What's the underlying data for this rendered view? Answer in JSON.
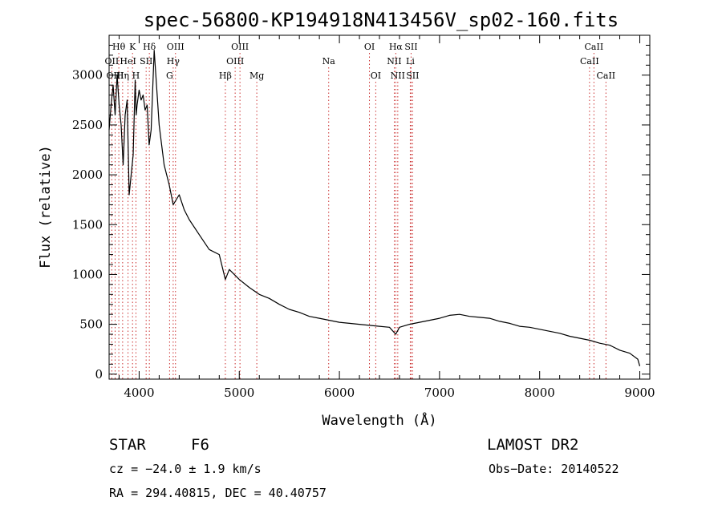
{
  "chart_data": {
    "type": "line",
    "title": "spec-56800-KP194918N413456V_sp02-160.fits",
    "xlabel": "Wavelength (Å)",
    "ylabel": "Flux (relative)",
    "xlim": [
      3700,
      9100
    ],
    "ylim": [
      -50,
      3400
    ],
    "xticks": [
      4000,
      5000,
      6000,
      7000,
      8000,
      9000
    ],
    "yticks": [
      0,
      500,
      1000,
      1500,
      2000,
      2500,
      3000
    ],
    "grid": false,
    "series": [
      {
        "x": [
          3700,
          3720,
          3740,
          3760,
          3780,
          3800,
          3820,
          3840,
          3860,
          3880,
          3900,
          3920,
          3940,
          3960,
          3970,
          3980,
          4000,
          4020,
          4040,
          4060,
          4080,
          4100,
          4120,
          4150,
          4200,
          4250,
          4300,
          4340,
          4400,
          4450,
          4500,
          4600,
          4700,
          4800,
          4861,
          4900,
          5000,
          5100,
          5200,
          5300,
          5400,
          5500,
          5600,
          5700,
          5800,
          5900,
          6000,
          6100,
          6200,
          6300,
          6400,
          6500,
          6563,
          6600,
          6700,
          6800,
          6900,
          7000,
          7100,
          7200,
          7300,
          7400,
          7500,
          7600,
          7700,
          7800,
          7900,
          8000,
          8100,
          8200,
          8300,
          8400,
          8500,
          8600,
          8700,
          8800,
          8900,
          8980,
          9000
        ],
        "y": [
          2450,
          2700,
          2900,
          2600,
          3000,
          2700,
          2500,
          2100,
          2600,
          2750,
          1800,
          2000,
          2200,
          2950,
          2600,
          2700,
          2850,
          2750,
          2800,
          2650,
          2700,
          2300,
          2450,
          3250,
          2500,
          2100,
          1900,
          1700,
          1800,
          1650,
          1550,
          1400,
          1250,
          1200,
          950,
          1050,
          950,
          870,
          800,
          760,
          700,
          650,
          620,
          580,
          560,
          540,
          520,
          510,
          500,
          490,
          480,
          470,
          400,
          470,
          500,
          520,
          540,
          560,
          590,
          600,
          580,
          570,
          560,
          530,
          510,
          480,
          470,
          450,
          430,
          410,
          380,
          360,
          340,
          310,
          290,
          240,
          210,
          150,
          80
        ]
      }
    ],
    "line_markers": [
      {
        "label": "Hθ",
        "x": 3797,
        "row": 0
      },
      {
        "label": "OII",
        "x": 3727,
        "row": 1
      },
      {
        "label": "OIII",
        "x": 3760,
        "row": 2
      },
      {
        "label": "K",
        "x": 3934,
        "row": 0
      },
      {
        "label": "HeI",
        "x": 3889,
        "row": 1
      },
      {
        "label": "Hη",
        "x": 3835,
        "row": 2
      },
      {
        "label": "Hδ",
        "x": 4102,
        "row": 0
      },
      {
        "label": "SII",
        "x": 4070,
        "row": 1
      },
      {
        "label": "H",
        "x": 3968,
        "row": 2
      },
      {
        "label": "OIII",
        "x": 4363,
        "row": 0
      },
      {
        "label": "Hγ",
        "x": 4340,
        "row": 1
      },
      {
        "label": "G",
        "x": 4304,
        "row": 2
      },
      {
        "label": "OIII",
        "x": 5007,
        "row": 0
      },
      {
        "label": "OIII",
        "x": 4959,
        "row": 1
      },
      {
        "label": "Hβ",
        "x": 4861,
        "row": 2
      },
      {
        "label": "Mg",
        "x": 5175,
        "row": 2
      },
      {
        "label": "Na",
        "x": 5893,
        "row": 1
      },
      {
        "label": "OI",
        "x": 6300,
        "row": 0
      },
      {
        "label": "OI",
        "x": 6363,
        "row": 2
      },
      {
        "label": "Hα",
        "x": 6563,
        "row": 0
      },
      {
        "label": "SII",
        "x": 6716,
        "row": 0
      },
      {
        "label": "NII",
        "x": 6548,
        "row": 1
      },
      {
        "label": "Li",
        "x": 6708,
        "row": 1
      },
      {
        "label": "NII",
        "x": 6583,
        "row": 2
      },
      {
        "label": "SII",
        "x": 6731,
        "row": 2
      },
      {
        "label": "CaII",
        "x": 8542,
        "row": 0
      },
      {
        "label": "CaII",
        "x": 8498,
        "row": 1
      },
      {
        "label": "CaII",
        "x": 8662,
        "row": 2
      }
    ]
  },
  "footer": {
    "class_label": "STAR",
    "subclass": "F6",
    "survey": "LAMOST DR2",
    "cz": "cz = −24.0 ± 1.9 km/s",
    "obs_date": "Obs−Date: 20140522",
    "coords": "RA = 294.40815, DEC =  40.40757"
  }
}
